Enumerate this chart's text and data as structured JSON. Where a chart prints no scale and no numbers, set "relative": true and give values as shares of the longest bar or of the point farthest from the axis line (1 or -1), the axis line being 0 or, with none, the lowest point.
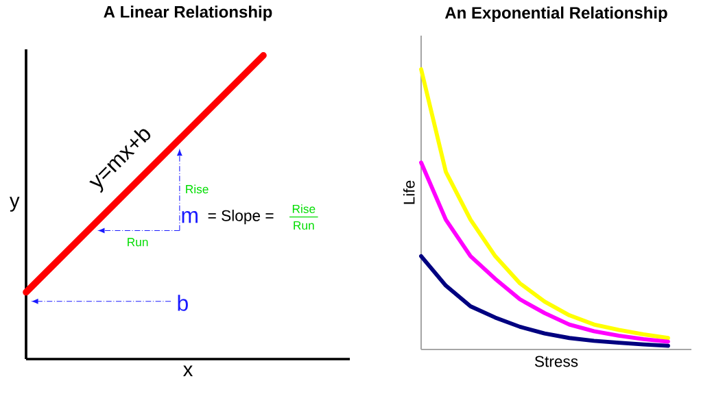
{
  "chart_data": [
    {
      "type": "line",
      "title": "A Linear Relationship",
      "xlabel": "x",
      "ylabel": "y",
      "relative": true,
      "categories": [
        null,
        null
      ],
      "series": [
        {
          "color": "#ff0000",
          "values": [
            0.22,
            1
          ]
        }
      ],
      "annotations": [
        "y=mx+b",
        "Rise",
        "Run",
        "m",
        "= Slope =",
        "Rise",
        "Run",
        "b"
      ]
    },
    {
      "type": "line",
      "title": "An Exponential Relationship",
      "xlabel": "Stress",
      "ylabel": "Life",
      "relative": true,
      "categories": [
        null,
        null,
        null,
        null,
        null,
        null,
        null,
        null,
        null,
        null,
        null
      ],
      "series": [
        {
          "color": "#ffff00",
          "values": [
            1,
            0.634,
            0.463,
            0.333,
            0.236,
            0.171,
            0.122,
            0.089,
            0.07,
            0.054,
            0.041
          ]
        },
        {
          "color": "#ff00ff",
          "values": [
            0.667,
            0.463,
            0.333,
            0.252,
            0.179,
            0.13,
            0.089,
            0.065,
            0.049,
            0.037,
            0.028
          ]
        },
        {
          "color": "#000080",
          "values": [
            0.333,
            0.228,
            0.154,
            0.114,
            0.081,
            0.057,
            0.041,
            0.031,
            0.024,
            0.018,
            0.013
          ]
        }
      ]
    }
  ]
}
